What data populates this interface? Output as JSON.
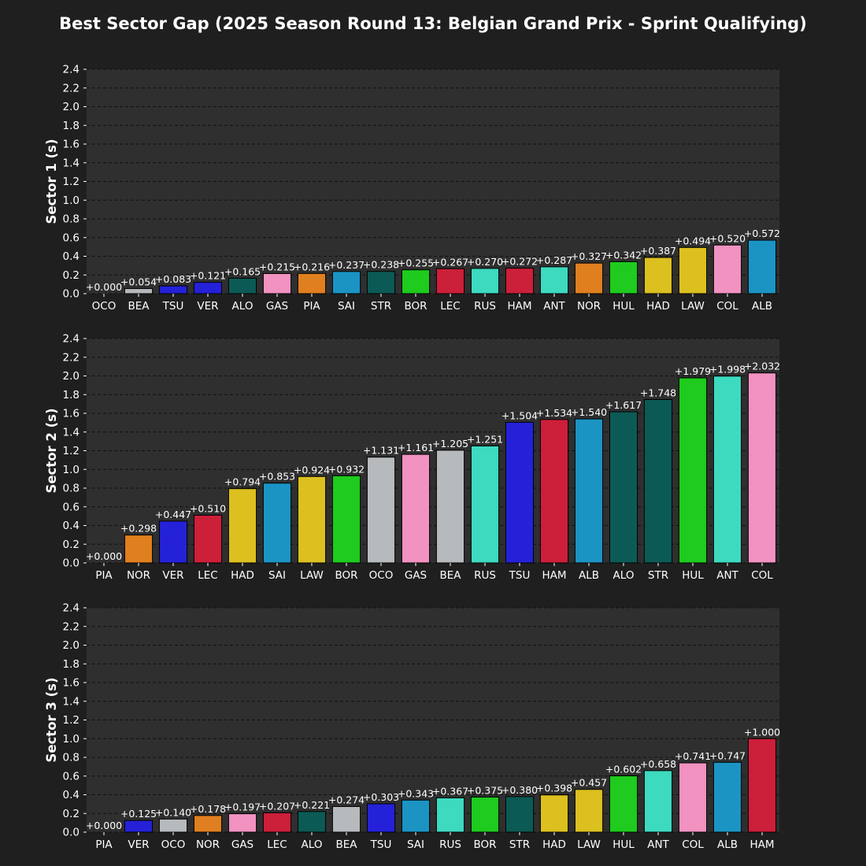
{
  "title": "Best Sector Gap (2025 Season Round 13: Belgian Grand Prix - Sprint Qualifying)",
  "colors": {
    "background": "#1f1f1f",
    "plot_background": "#2f2f2f",
    "grid": "#111111",
    "text": "#ffffff"
  },
  "team_colors": {
    "OCO": "#b6babd",
    "BEA": "#b6babd",
    "TSU": "#2521d8",
    "VER": "#2521d8",
    "ALO": "#0c5a55",
    "STR": "#0c5a55",
    "GAS": "#f192c0",
    "COL": "#f192c0",
    "PIA": "#e07f1f",
    "NOR": "#e07f1f",
    "SAI": "#1b94c4",
    "ALB": "#1b94c4",
    "BOR": "#1ecb1e",
    "HUL": "#1ecb1e",
    "LEC": "#cc1f3a",
    "HAM": "#cc1f3a",
    "RUS": "#3ddac0",
    "ANT": "#3ddac0",
    "HAD": "#dcc020",
    "LAW": "#dcc020"
  },
  "chart_data": [
    {
      "type": "bar",
      "ylabel": "Sector 1 (s)",
      "ylim": [
        0,
        2.4
      ],
      "yticks": [
        "0.0",
        "0.2",
        "0.4",
        "0.6",
        "0.8",
        "1.0",
        "1.2",
        "1.4",
        "1.6",
        "1.8",
        "2.0",
        "2.2",
        "2.4"
      ],
      "grid": true,
      "categories": [
        "OCO",
        "BEA",
        "TSU",
        "VER",
        "ALO",
        "GAS",
        "PIA",
        "SAI",
        "STR",
        "BOR",
        "LEC",
        "RUS",
        "HAM",
        "ANT",
        "NOR",
        "HUL",
        "HAD",
        "LAW",
        "COL",
        "ALB"
      ],
      "values": [
        0.0,
        0.054,
        0.083,
        0.121,
        0.165,
        0.215,
        0.216,
        0.237,
        0.238,
        0.255,
        0.267,
        0.27,
        0.272,
        0.287,
        0.327,
        0.342,
        0.387,
        0.494,
        0.52,
        0.572
      ],
      "labels": [
        "+0.000",
        "+0.054",
        "+0.083",
        "+0.121",
        "+0.165",
        "+0.215",
        "+0.216",
        "+0.237",
        "+0.238",
        "+0.255",
        "+0.267",
        "+0.270",
        "+0.272",
        "+0.287",
        "+0.327",
        "+0.342",
        "+0.387",
        "+0.494",
        "+0.520",
        "+0.572"
      ]
    },
    {
      "type": "bar",
      "ylabel": "Sector 2 (s)",
      "ylim": [
        0,
        2.4
      ],
      "yticks": [
        "0.0",
        "0.2",
        "0.4",
        "0.6",
        "0.8",
        "1.0",
        "1.2",
        "1.4",
        "1.6",
        "1.8",
        "2.0",
        "2.2",
        "2.4"
      ],
      "grid": true,
      "categories": [
        "PIA",
        "NOR",
        "VER",
        "LEC",
        "HAD",
        "SAI",
        "LAW",
        "BOR",
        "OCO",
        "GAS",
        "BEA",
        "RUS",
        "TSU",
        "HAM",
        "ALB",
        "ALO",
        "STR",
        "HUL",
        "ANT",
        "COL"
      ],
      "values": [
        0.0,
        0.298,
        0.447,
        0.51,
        0.794,
        0.853,
        0.924,
        0.932,
        1.131,
        1.161,
        1.205,
        1.251,
        1.504,
        1.534,
        1.54,
        1.617,
        1.748,
        1.979,
        1.998,
        2.032
      ],
      "labels": [
        "+0.000",
        "+0.298",
        "+0.447",
        "+0.510",
        "+0.794",
        "+0.853",
        "+0.924",
        "+0.932",
        "+1.131",
        "+1.161",
        "+1.205",
        "+1.251",
        "+1.504",
        "+1.534",
        "+1.540",
        "+1.617",
        "+1.748",
        "+1.979",
        "+1.998",
        "+2.032"
      ]
    },
    {
      "type": "bar",
      "ylabel": "Sector 3 (s)",
      "ylim": [
        0,
        2.4
      ],
      "yticks": [
        "0.0",
        "0.2",
        "0.4",
        "0.6",
        "0.8",
        "1.0",
        "1.2",
        "1.4",
        "1.6",
        "1.8",
        "2.0",
        "2.2",
        "2.4"
      ],
      "grid": true,
      "categories": [
        "PIA",
        "VER",
        "OCO",
        "NOR",
        "GAS",
        "LEC",
        "ALO",
        "BEA",
        "TSU",
        "SAI",
        "RUS",
        "BOR",
        "STR",
        "HAD",
        "LAW",
        "HUL",
        "ANT",
        "COL",
        "ALB",
        "HAM"
      ],
      "values": [
        0.0,
        0.125,
        0.14,
        0.178,
        0.197,
        0.207,
        0.221,
        0.274,
        0.303,
        0.343,
        0.367,
        0.375,
        0.38,
        0.398,
        0.457,
        0.602,
        0.658,
        0.741,
        0.747,
        1.0
      ],
      "labels": [
        "+0.000",
        "+0.125",
        "+0.140",
        "+0.178",
        "+0.197",
        "+0.207",
        "+0.221",
        "+0.274",
        "+0.303",
        "+0.343",
        "+0.367",
        "+0.375",
        "+0.380",
        "+0.398",
        "+0.457",
        "+0.602",
        "+0.658",
        "+0.741",
        "+0.747",
        "+1.000"
      ]
    }
  ]
}
